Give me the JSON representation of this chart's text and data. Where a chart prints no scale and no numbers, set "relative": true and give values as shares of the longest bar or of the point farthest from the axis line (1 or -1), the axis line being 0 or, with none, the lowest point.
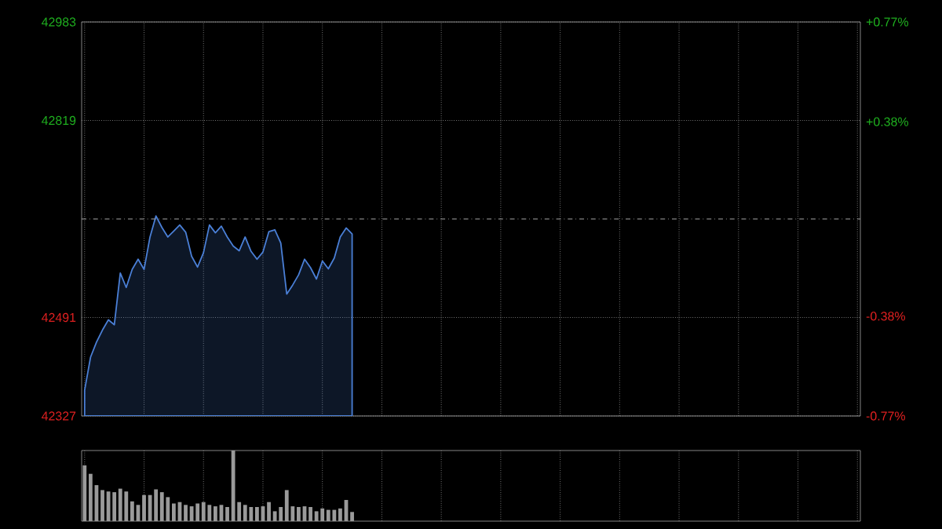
{
  "chart_data": [
    {
      "type": "area",
      "categories": [
        null,
        null,
        null,
        null,
        null,
        null,
        null,
        null,
        null,
        null,
        null,
        null,
        null,
        null,
        null,
        null,
        null,
        null,
        null,
        null,
        null,
        null,
        null,
        null,
        null,
        null,
        null,
        null,
        null,
        null,
        null,
        null,
        null,
        null,
        null,
        null,
        null,
        null,
        null,
        null,
        null,
        null,
        null,
        null,
        null,
        null,
        null,
        null,
        null,
        null,
        null,
        null,
        null,
        null,
        null,
        null,
        null,
        null,
        null,
        null,
        null,
        null,
        null,
        null,
        null,
        null,
        null,
        null,
        null,
        null,
        null,
        null,
        null,
        null,
        null,
        null,
        null,
        null,
        null,
        null,
        null,
        null,
        null,
        null,
        null,
        null,
        null,
        null,
        null,
        null,
        null,
        null,
        null,
        null,
        null,
        null,
        null,
        null,
        null,
        null,
        null,
        null,
        null,
        null,
        null,
        null,
        null,
        null,
        null,
        null,
        null,
        null,
        null,
        null,
        null,
        null,
        null,
        null,
        null,
        null,
        null,
        null,
        null,
        null,
        null,
        null,
        null,
        null,
        null,
        null,
        null
      ],
      "series": [
        {
          "color": "#4a7fd6",
          "values": [
            42370,
            42425,
            42450,
            42470,
            42487,
            42479,
            42565,
            42541,
            42571,
            42588,
            42571,
            42625,
            42660,
            42641,
            42625,
            42635,
            42645,
            42633,
            42593,
            42575,
            42599,
            42645,
            42632,
            42643,
            42625,
            42610,
            42602,
            42625,
            42601,
            42588,
            42600,
            42634,
            42637,
            42615,
            42530,
            42545,
            42562,
            42588,
            42574,
            42555,
            42585,
            42572,
            42590,
            42625,
            42640,
            42630,
            null,
            null,
            null,
            null,
            null,
            null,
            null,
            null,
            null,
            null,
            null,
            null,
            null,
            null,
            null,
            null,
            null,
            null,
            null,
            null,
            null,
            null,
            null,
            null,
            null,
            null,
            null,
            null,
            null,
            null,
            null,
            null,
            null,
            null,
            null,
            null,
            null,
            null,
            null,
            null,
            null,
            null,
            null,
            null,
            null,
            null,
            null,
            null,
            null,
            null,
            null,
            null,
            null,
            null,
            null,
            null,
            null,
            null,
            null,
            null,
            null,
            null,
            null,
            null,
            null,
            null,
            null,
            null,
            null,
            null,
            null,
            null,
            null,
            null,
            null,
            null,
            null,
            null,
            null,
            null,
            null,
            null,
            null,
            null,
            null
          ]
        }
      ],
      "ylim": [
        42327,
        42983
      ],
      "yticks": [
        42327,
        42491,
        42819,
        42983
      ],
      "y2lim": [
        -0.77,
        0.77
      ],
      "y2ticks": [
        {
          "value": -0.77,
          "label": "-0.77%"
        },
        {
          "value": -0.38,
          "label": "-0.38%"
        },
        {
          "value": 0.38,
          "label": "+0.38%"
        },
        {
          "value": 0.77,
          "label": "+0.77%"
        }
      ],
      "ref_lines": [
        {
          "axis": "y",
          "value": 42655
        }
      ],
      "grid": true
    },
    {
      "type": "bar",
      "relative": true,
      "grid": "x",
      "color": "#9a9a9a",
      "categories": [
        null,
        null,
        null,
        null,
        null,
        null,
        null,
        null,
        null,
        null,
        null,
        null,
        null,
        null,
        null,
        null,
        null,
        null,
        null,
        null,
        null,
        null,
        null,
        null,
        null,
        null,
        null,
        null,
        null,
        null,
        null,
        null,
        null,
        null,
        null,
        null,
        null,
        null,
        null,
        null,
        null,
        null,
        null,
        null,
        null,
        null,
        null,
        null,
        null,
        null,
        null,
        null,
        null,
        null,
        null,
        null,
        null,
        null,
        null,
        null,
        null,
        null,
        null,
        null,
        null,
        null,
        null,
        null,
        null,
        null,
        null,
        null,
        null,
        null,
        null,
        null,
        null,
        null,
        null,
        null,
        null,
        null,
        null,
        null,
        null,
        null,
        null,
        null,
        null,
        null,
        null,
        null,
        null,
        null,
        null,
        null,
        null,
        null,
        null,
        null,
        null,
        null,
        null,
        null,
        null,
        null,
        null,
        null,
        null,
        null,
        null,
        null,
        null,
        null,
        null,
        null,
        null,
        null,
        null,
        null,
        null,
        null,
        null,
        null,
        null,
        null,
        null,
        null,
        null,
        null,
        null
      ],
      "values": [
        0.79,
        0.67,
        0.51,
        0.44,
        0.42,
        0.41,
        0.46,
        0.42,
        0.28,
        0.23,
        0.37,
        0.37,
        0.45,
        0.41,
        0.34,
        0.25,
        0.27,
        0.23,
        0.21,
        0.25,
        0.27,
        0.23,
        0.21,
        0.23,
        0.2,
        1,
        0.27,
        0.23,
        0.2,
        0.2,
        0.21,
        0.27,
        0.14,
        0.2,
        0.44,
        0.21,
        0.2,
        0.21,
        0.2,
        0.14,
        0.18,
        0.16,
        0.16,
        0.18,
        0.3,
        0.13,
        null,
        null,
        null,
        null,
        null,
        null,
        null,
        null,
        null,
        null,
        null,
        null,
        null,
        null,
        null,
        null,
        null,
        null,
        null,
        null,
        null,
        null,
        null,
        null,
        null,
        null,
        null,
        null,
        null,
        null,
        null,
        null,
        null,
        null,
        null,
        null,
        null,
        null,
        null,
        null,
        null,
        null,
        null,
        null,
        null,
        null,
        null,
        null,
        null,
        null,
        null,
        null,
        null,
        null,
        null,
        null,
        null,
        null,
        null,
        null,
        null,
        null,
        null,
        null,
        null,
        null,
        null,
        null,
        null,
        null,
        null,
        null,
        null,
        null,
        null,
        null,
        null,
        null,
        null,
        null,
        null,
        null,
        null,
        null,
        null
      ]
    }
  ]
}
